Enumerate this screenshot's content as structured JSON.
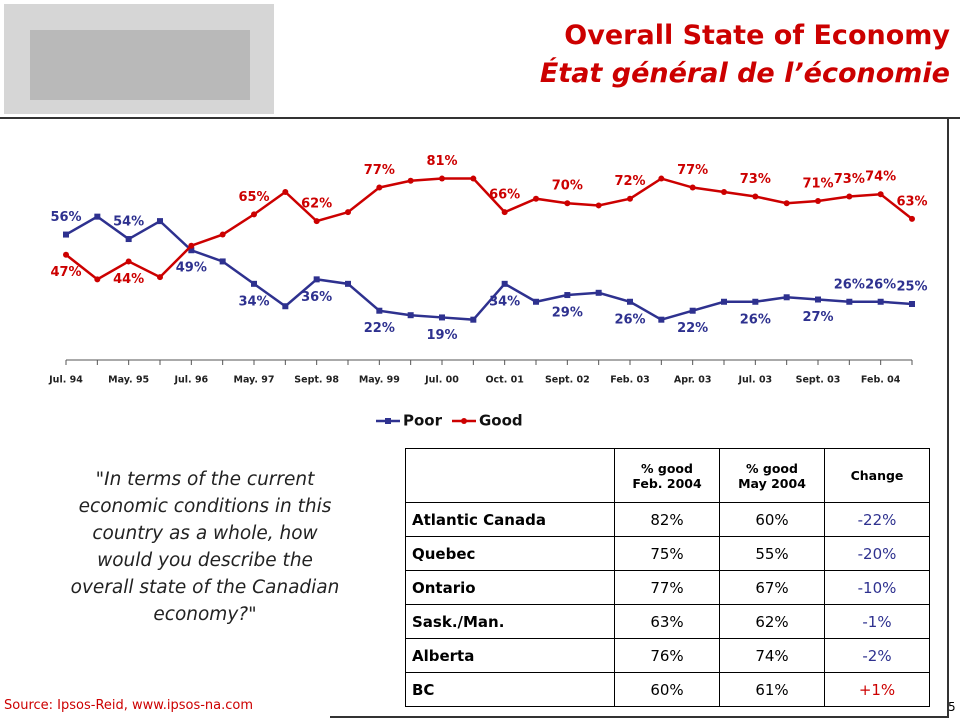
{
  "header": {
    "title": "Overall State of Economy",
    "subtitle": "État général de l’économie"
  },
  "chart_data": {
    "type": "line",
    "categories": [
      "Jul. 94",
      null,
      "May. 95",
      null,
      "Jul. 96",
      null,
      "May. 97",
      null,
      "Sept. 98",
      null,
      "May. 99",
      null,
      "Jul. 00",
      null,
      "Oct. 01",
      null,
      "Sept. 02",
      null,
      "Feb. 03",
      null,
      "Apr. 03",
      null,
      "Jul. 03",
      null,
      "Sept. 03",
      null,
      "Feb. 04",
      null
    ],
    "series": [
      {
        "name": "Poor",
        "color": "#2e318f",
        "values": [
          56,
          64,
          54,
          62,
          49,
          44,
          34,
          24,
          36,
          34,
          22,
          20,
          19,
          18,
          34,
          26,
          29,
          30,
          26,
          18,
          22,
          26,
          26,
          28,
          27,
          26,
          26,
          25
        ],
        "value_labels": [
          "56%",
          null,
          "54%",
          null,
          "49%",
          null,
          "34%",
          null,
          "36%",
          null,
          "22%",
          null,
          "19%",
          null,
          "34%",
          null,
          "29%",
          null,
          "26%",
          null,
          "22%",
          null,
          "26%",
          null,
          "27%",
          "26%",
          "26%",
          "25%"
        ]
      },
      {
        "name": "Good",
        "color": "#cc0000",
        "values": [
          47,
          36,
          44,
          37,
          51,
          56,
          65,
          75,
          62,
          66,
          77,
          80,
          81,
          81,
          66,
          72,
          70,
          69,
          72,
          81,
          77,
          75,
          73,
          70,
          71,
          73,
          74,
          63
        ],
        "value_labels": [
          "47%",
          null,
          "44%",
          null,
          null,
          null,
          "65%",
          null,
          "62%",
          null,
          "77%",
          null,
          "81%",
          null,
          "66%",
          null,
          "70%",
          null,
          "72%",
          null,
          "77%",
          null,
          "73%",
          null,
          "71%",
          "73%",
          "74%",
          "63%"
        ]
      }
    ],
    "ylim": [
      0,
      100
    ],
    "legend": "bottom"
  },
  "question": "\"In terms of the current economic conditions in this country as a whole, how would you describe the overall state of the Canadian economy?\"",
  "table": {
    "columns": [
      "% good\nFeb. 2004",
      "% good\nMay 2004",
      "Change"
    ],
    "rows": [
      [
        "Atlantic Canada",
        "82%",
        "60%",
        "-22%"
      ],
      [
        "Quebec",
        "75%",
        "55%",
        "-20%"
      ],
      [
        "Ontario",
        "77%",
        "67%",
        "-10%"
      ],
      [
        "Sask./Man.",
        "63%",
        "62%",
        "-1%"
      ],
      [
        "Alberta",
        "76%",
        "74%",
        "-2%"
      ],
      [
        "BC",
        "60%",
        "61%",
        "+1%"
      ]
    ]
  },
  "footer": {
    "source": "Source: Ipsos-Reid, www.ipsos-na.com",
    "page": "5"
  }
}
